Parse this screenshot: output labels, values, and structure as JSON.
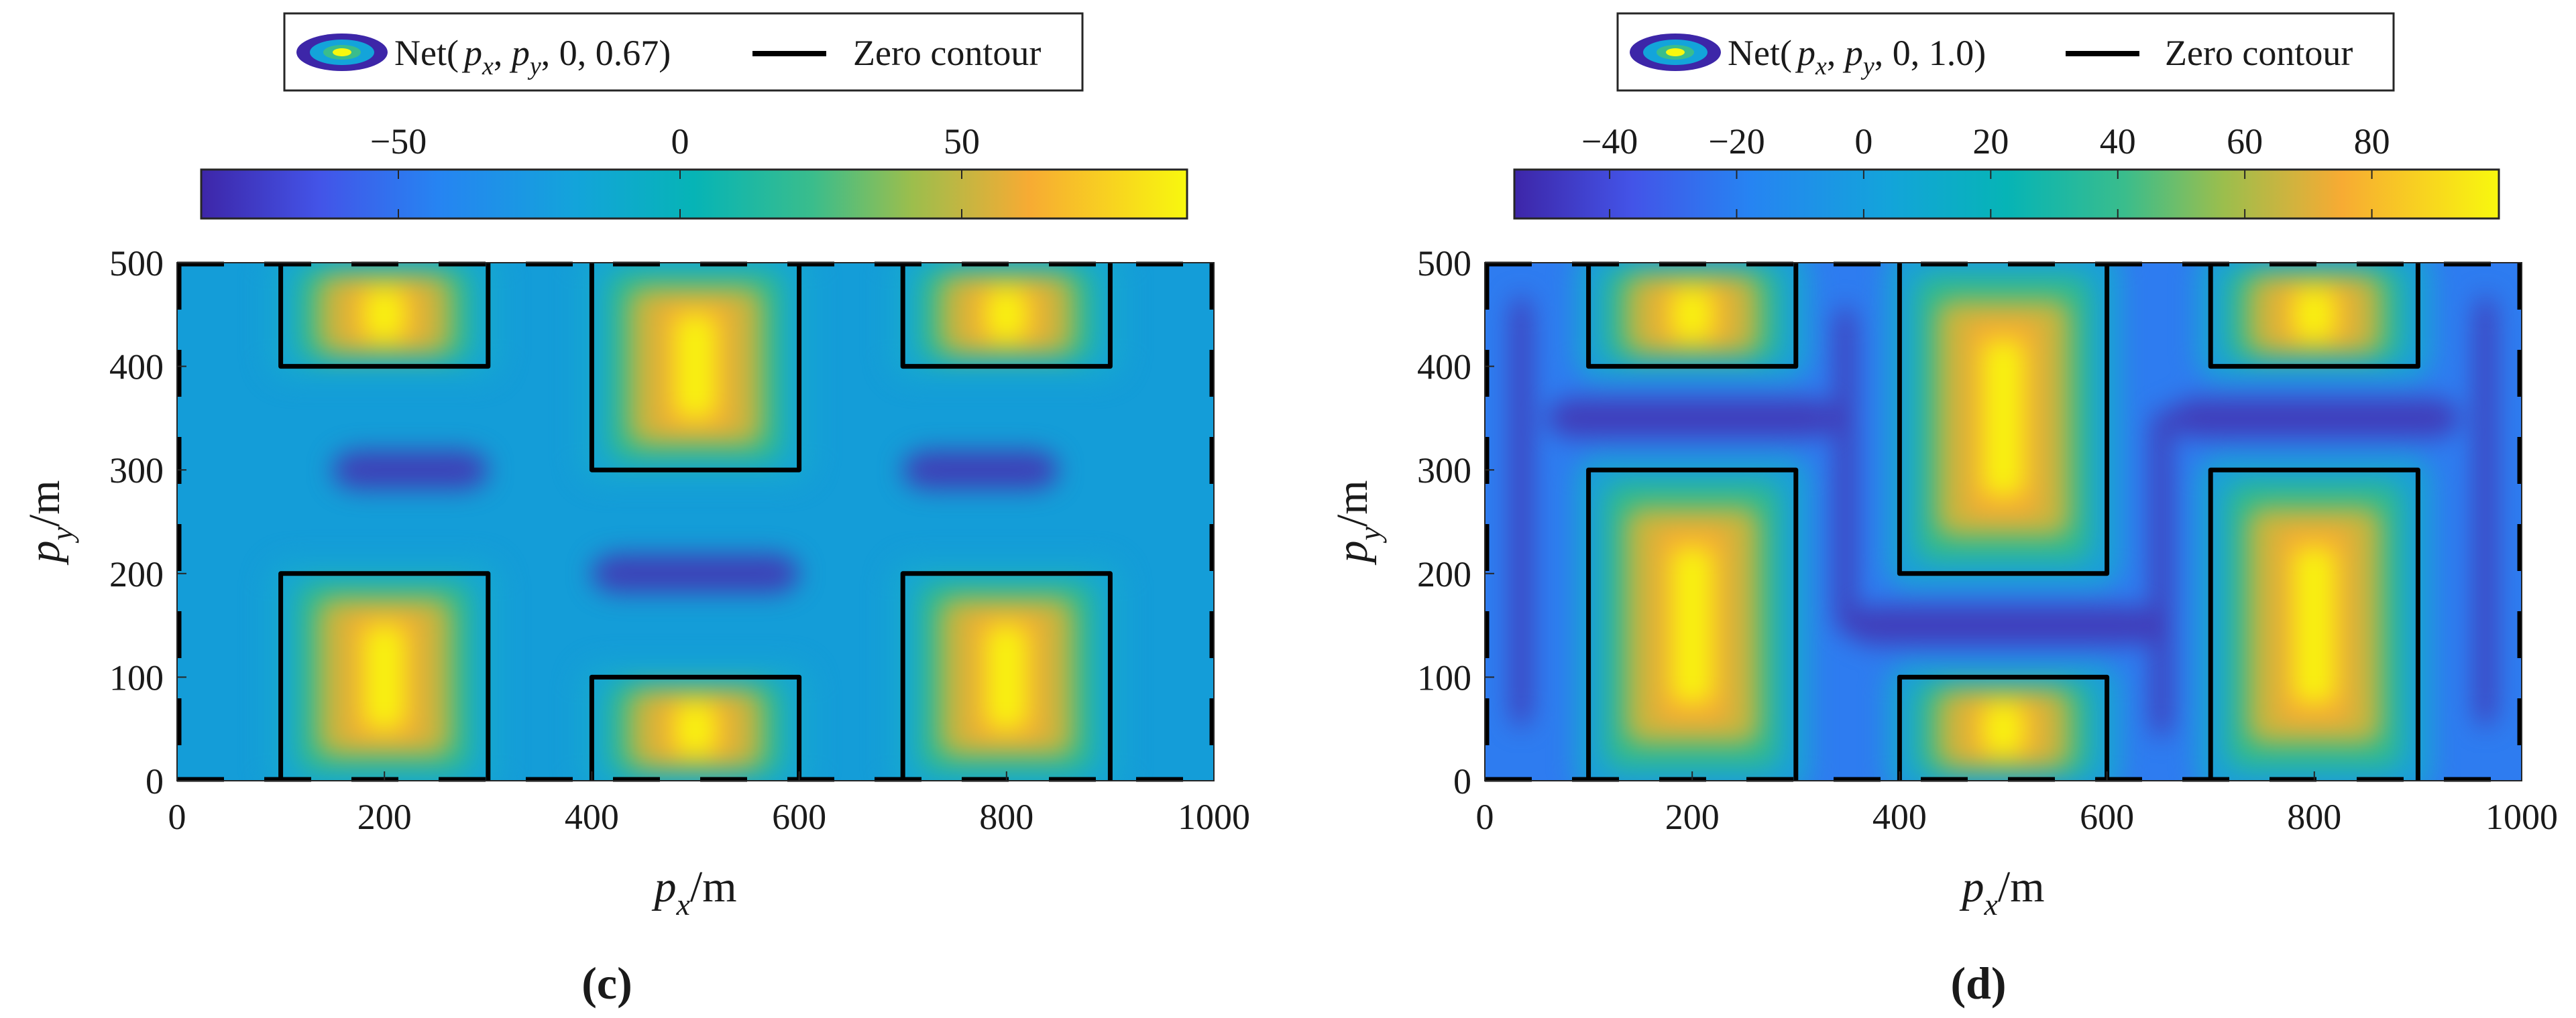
{
  "chart_data": [
    {
      "type": "heatmap",
      "panel_label": "(c)",
      "legend": {
        "series_label": "Net(",
        "px": "p",
        "px_sub": "x",
        "py": "p",
        "py_sub": "y",
        "tail": ", 0, 0.67)",
        "contour_label": "Zero contour"
      },
      "colorbar": {
        "range": [
          -85,
          90
        ],
        "ticks": [
          -50,
          0,
          50
        ],
        "tick_labels": [
          "−50",
          "0",
          "50"
        ]
      },
      "xlabel": {
        "main": "p",
        "sub": "x",
        "unit": "/m"
      },
      "ylabel": {
        "main": "p",
        "sub": "y",
        "unit": "/m"
      },
      "xlim": [
        0,
        1000
      ],
      "ylim": [
        0,
        500
      ],
      "xticks": [
        0,
        200,
        400,
        600,
        800,
        1000
      ],
      "yticks": [
        0,
        100,
        200,
        300,
        400,
        500
      ],
      "tick_labels_x": [
        "0",
        "200",
        "400",
        "600",
        "800",
        "1000"
      ],
      "tick_labels_y": [
        "0",
        "100",
        "200",
        "300",
        "400",
        "500"
      ],
      "hotspots": [
        {
          "x": [
            100,
            300
          ],
          "y": [
            400,
            500
          ],
          "peak": 85
        },
        {
          "x": [
            400,
            600
          ],
          "y": [
            300,
            500
          ],
          "peak": 90
        },
        {
          "x": [
            700,
            900
          ],
          "y": [
            400,
            500
          ],
          "peak": 85
        },
        {
          "x": [
            100,
            300
          ],
          "y": [
            0,
            200
          ],
          "peak": 90
        },
        {
          "x": [
            400,
            600
          ],
          "y": [
            0,
            100
          ],
          "peak": 85
        },
        {
          "x": [
            700,
            900
          ],
          "y": [
            0,
            200
          ],
          "peak": 90
        }
      ],
      "troughs": [
        {
          "x": [
            150,
            300
          ],
          "y": [
            300,
            300
          ]
        },
        {
          "x": [
            700,
            850
          ],
          "y": [
            300,
            300
          ]
        },
        {
          "x": [
            400,
            600
          ],
          "y": [
            200,
            200
          ]
        }
      ],
      "zero_contours": [
        [
          [
            100,
            500
          ],
          [
            100,
            400
          ],
          [
            300,
            400
          ],
          [
            300,
            500
          ]
        ],
        [
          [
            400,
            500
          ],
          [
            400,
            300
          ],
          [
            600,
            300
          ],
          [
            600,
            500
          ]
        ],
        [
          [
            700,
            500
          ],
          [
            700,
            400
          ],
          [
            900,
            400
          ],
          [
            900,
            500
          ]
        ],
        [
          [
            100,
            0
          ],
          [
            100,
            200
          ],
          [
            300,
            200
          ],
          [
            300,
            0
          ]
        ],
        [
          [
            400,
            0
          ],
          [
            400,
            100
          ],
          [
            600,
            100
          ],
          [
            600,
            0
          ]
        ],
        [
          [
            700,
            0
          ],
          [
            700,
            200
          ],
          [
            900,
            200
          ],
          [
            900,
            0
          ]
        ]
      ]
    },
    {
      "type": "heatmap",
      "panel_label": "(d)",
      "legend": {
        "series_label": "Net(",
        "px": "p",
        "px_sub": "x",
        "py": "p",
        "py_sub": "y",
        "tail": ", 0, 1.0)",
        "contour_label": "Zero contour"
      },
      "colorbar": {
        "range": [
          -55,
          100
        ],
        "ticks": [
          -40,
          -20,
          0,
          20,
          40,
          60,
          80
        ],
        "tick_labels": [
          "−40",
          "−20",
          "0",
          "20",
          "40",
          "60",
          "80"
        ]
      },
      "xlabel": {
        "main": "p",
        "sub": "x",
        "unit": "/m"
      },
      "ylabel": {
        "main": "p",
        "sub": "y",
        "unit": "/m"
      },
      "xlim": [
        0,
        1000
      ],
      "ylim": [
        0,
        500
      ],
      "xticks": [
        0,
        200,
        400,
        600,
        800,
        1000
      ],
      "yticks": [
        0,
        100,
        200,
        300,
        400,
        500
      ],
      "tick_labels_x": [
        "0",
        "200",
        "400",
        "600",
        "800",
        "1000"
      ],
      "tick_labels_y": [
        "0",
        "100",
        "200",
        "300",
        "400",
        "500"
      ],
      "hotspots": [
        {
          "x": [
            100,
            300
          ],
          "y": [
            400,
            500
          ],
          "peak": 90
        },
        {
          "x": [
            400,
            600
          ],
          "y": [
            200,
            500
          ],
          "peak": 95
        },
        {
          "x": [
            700,
            900
          ],
          "y": [
            400,
            500
          ],
          "peak": 90
        },
        {
          "x": [
            100,
            300
          ],
          "y": [
            0,
            300
          ],
          "peak": 95
        },
        {
          "x": [
            400,
            600
          ],
          "y": [
            0,
            100
          ],
          "peak": 90
        },
        {
          "x": [
            700,
            900
          ],
          "y": [
            0,
            300
          ],
          "peak": 95
        }
      ],
      "troughs": [
        {
          "x": [
            30,
            40
          ],
          "y": [
            60,
            460
          ]
        },
        {
          "x": [
            960,
            970
          ],
          "y": [
            60,
            460
          ]
        },
        {
          "x": [
            60,
            340
          ],
          "y": [
            350,
            350
          ]
        },
        {
          "x": [
            660,
            940
          ],
          "y": [
            350,
            350
          ]
        },
        {
          "x": [
            350,
            650
          ],
          "y": [
            150,
            150
          ]
        },
        {
          "x": [
            345,
            350
          ],
          "y": [
            150,
            450
          ]
        },
        {
          "x": [
            650,
            655
          ],
          "y": [
            50,
            350
          ]
        }
      ],
      "zero_contours": [
        [
          [
            100,
            500
          ],
          [
            100,
            400
          ],
          [
            300,
            400
          ],
          [
            300,
            500
          ]
        ],
        [
          [
            400,
            500
          ],
          [
            400,
            200
          ],
          [
            600,
            200
          ],
          [
            600,
            500
          ]
        ],
        [
          [
            700,
            500
          ],
          [
            700,
            400
          ],
          [
            900,
            400
          ],
          [
            900,
            500
          ]
        ],
        [
          [
            100,
            0
          ],
          [
            100,
            300
          ],
          [
            300,
            300
          ],
          [
            300,
            0
          ]
        ],
        [
          [
            400,
            0
          ],
          [
            400,
            100
          ],
          [
            600,
            100
          ],
          [
            600,
            0
          ]
        ],
        [
          [
            700,
            0
          ],
          [
            700,
            300
          ],
          [
            900,
            300
          ],
          [
            900,
            0
          ]
        ]
      ]
    }
  ]
}
